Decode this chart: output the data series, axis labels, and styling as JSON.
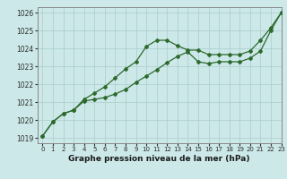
{
  "title": "Graphe pression niveau de la mer (hPa)",
  "background_color": "#cce8e8",
  "plot_background": "#cce8e8",
  "grid_color": "#aacccc",
  "line_color": "#2d6a2d",
  "xlim": [
    -0.5,
    23
  ],
  "ylim": [
    1018.7,
    1026.3
  ],
  "xticks": [
    0,
    1,
    2,
    3,
    4,
    5,
    6,
    7,
    8,
    9,
    10,
    11,
    12,
    13,
    14,
    15,
    16,
    17,
    18,
    19,
    20,
    21,
    22,
    23
  ],
  "yticks": [
    1019,
    1020,
    1021,
    1022,
    1023,
    1024,
    1025,
    1026
  ],
  "series1_x": [
    0,
    1,
    2,
    3,
    4,
    5,
    6,
    7,
    8,
    9,
    10,
    11,
    12,
    13,
    14,
    15,
    16,
    17,
    18,
    19,
    20,
    21,
    22,
    23
  ],
  "series1_y": [
    1019.1,
    1019.9,
    1020.35,
    1020.55,
    1021.15,
    1021.5,
    1021.85,
    1022.35,
    1022.85,
    1023.25,
    1024.1,
    1024.45,
    1024.45,
    1024.15,
    1023.9,
    1023.9,
    1023.65,
    1023.65,
    1023.65,
    1023.65,
    1023.85,
    1024.45,
    1025.15,
    1026.0
  ],
  "series2_x": [
    0,
    1,
    2,
    3,
    4,
    5,
    6,
    7,
    8,
    9,
    10,
    11,
    12,
    13,
    14,
    15,
    16,
    17,
    18,
    19,
    20,
    21,
    22,
    23
  ],
  "series2_y": [
    1019.1,
    1019.9,
    1020.35,
    1020.55,
    1021.05,
    1021.15,
    1021.25,
    1021.45,
    1021.7,
    1022.1,
    1022.45,
    1022.8,
    1023.2,
    1023.55,
    1023.8,
    1023.25,
    1023.15,
    1023.25,
    1023.25,
    1023.25,
    1023.45,
    1023.85,
    1025.0,
    1026.0
  ],
  "title_fontsize": 6.5,
  "tick_fontsize": 5.5,
  "xlabel_fontsize": 6.5
}
